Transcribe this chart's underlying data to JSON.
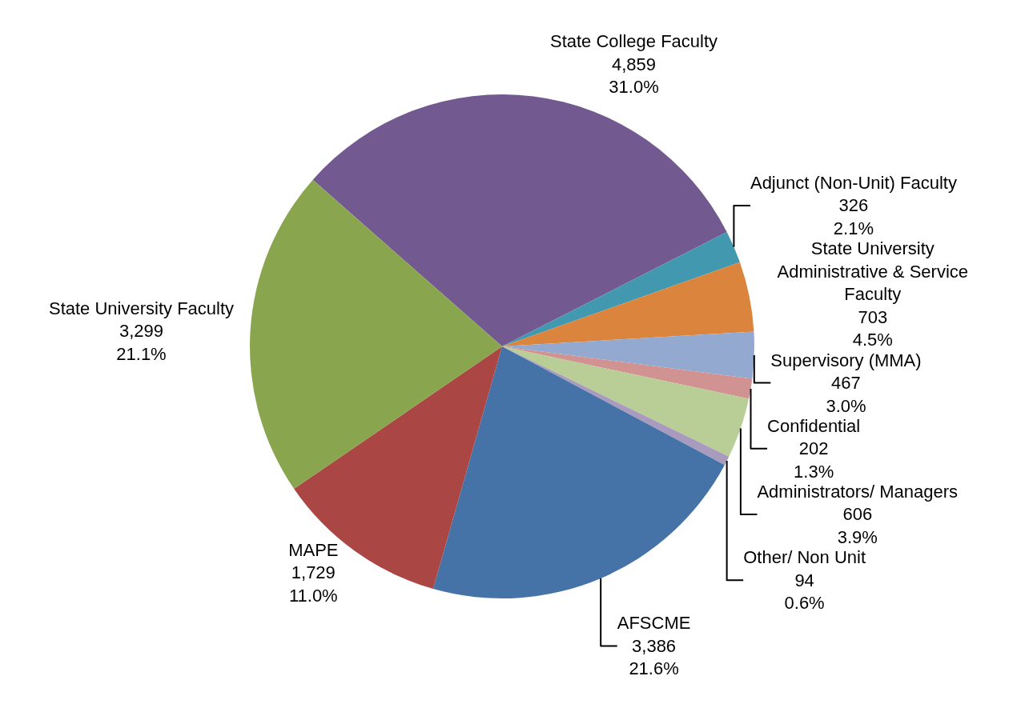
{
  "chart_data": {
    "type": "pie",
    "categories": [
      "State College Faculty",
      "Adjunct (Non-Unit) Faculty",
      "State University Administrative & Service Faculty",
      "Supervisory (MMA)",
      "Confidential",
      "Administrators/ Managers",
      "Other/ Non Unit",
      "AFSCME",
      "MAPE",
      "State University Faculty"
    ],
    "values": [
      4859,
      326,
      703,
      467,
      202,
      606,
      94,
      3386,
      1729,
      3299
    ],
    "value_labels": [
      "4,859\n31.0%",
      "326\n2.1%",
      "703\n4.5%",
      "467\n3.0%",
      "202\n1.3%",
      "606\n3.9%",
      "94\n0.6%",
      "3,386\n21.6%",
      "1,729\n11.0%",
      "3,299\n21.1%"
    ],
    "colors": [
      "#725990",
      "#4198af",
      "#db843d",
      "#93a9cf",
      "#d19392",
      "#b9cd96",
      "#a99bbd",
      "#4572a7",
      "#aa4643",
      "#89a54e"
    ],
    "legend": false
  }
}
